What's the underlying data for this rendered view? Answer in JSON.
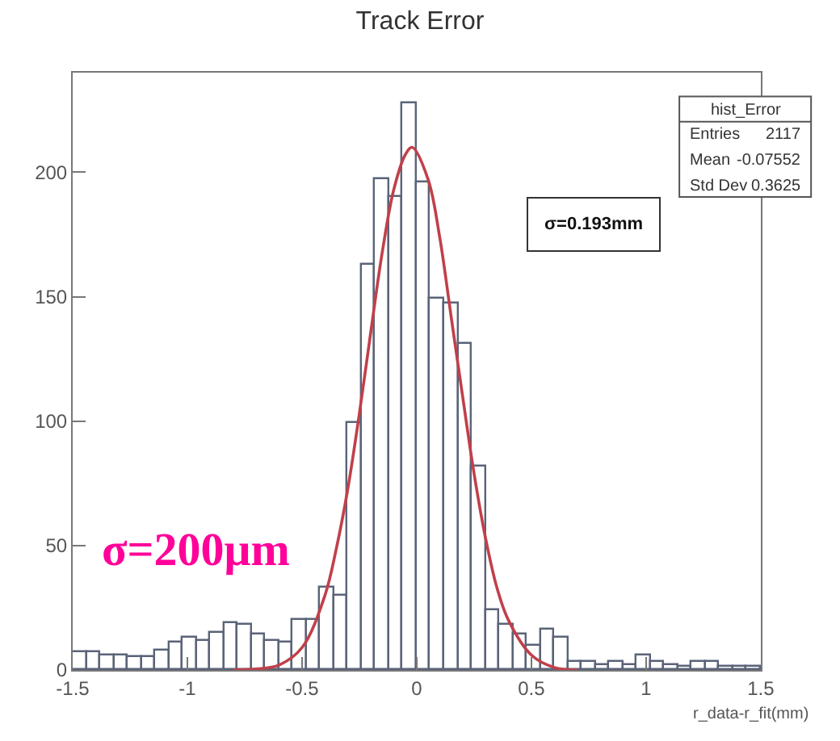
{
  "chart_data": {
    "type": "histogram",
    "title": "Track Error",
    "xlabel": "r_data-r_fit(mm)",
    "bins": [
      -1.5,
      -1.44,
      -1.38,
      -1.32,
      -1.26,
      -1.2,
      -1.14,
      -1.08,
      -1.02,
      -0.96,
      -0.9,
      -0.84,
      -0.78,
      -0.72,
      -0.66,
      -0.6,
      -0.54,
      -0.48,
      -0.42,
      -0.36,
      -0.3,
      -0.24,
      -0.18,
      -0.12,
      -0.06,
      0,
      0.06,
      0.12,
      0.18,
      0.24,
      0.3,
      0.36,
      0.42,
      0.48,
      0.54,
      0.6,
      0.66,
      0.72,
      0.78,
      0.84,
      0.9,
      0.96,
      1.02,
      1.08,
      1.14,
      1.2,
      1.26,
      1.32,
      1.38,
      1.44,
      1.5
    ],
    "values": [
      7,
      7,
      6,
      6,
      5,
      5,
      8,
      11,
      13,
      12,
      15,
      19,
      18,
      14,
      12,
      11,
      20,
      20,
      33,
      30,
      99,
      163,
      197,
      190,
      228,
      196,
      149,
      147,
      131,
      82,
      24,
      18,
      14,
      10,
      16,
      13,
      3,
      3,
      2,
      3,
      2,
      6,
      3,
      2,
      1,
      3,
      3,
      1,
      1,
      1
    ],
    "color": "#5a6378",
    "series": [
      {
        "type": "line",
        "color": "#c0404a",
        "x": [
          -0.8,
          -0.7,
          -0.6,
          -0.5,
          -0.4,
          -0.35,
          -0.3,
          -0.25,
          -0.2,
          -0.15,
          -0.1,
          -0.05,
          -0.02,
          0.05,
          0.1,
          0.15,
          0.2,
          0.25,
          0.3,
          0.35,
          0.4,
          0.5,
          0.6,
          0.7
        ],
        "values": [
          0,
          0.4,
          2,
          9,
          30,
          49,
          73,
          103,
          136,
          168,
          193,
          207,
          210,
          197,
          174,
          142,
          110,
          79,
          53,
          33,
          20,
          6,
          1,
          0
        ]
      }
    ],
    "xlim": [
      -1.5,
      1.5
    ],
    "xticks": [
      -1.5,
      -1,
      -0.5,
      0,
      0.5,
      1,
      1.5
    ],
    "ylim": [
      0,
      240
    ],
    "yticks": [
      0,
      50,
      100,
      150,
      200
    ],
    "annotations": [
      "hist_Error",
      "Entries",
      "2117",
      "Mean",
      "-0.07552",
      "Std Dev",
      "0.3625",
      "σ=0.193mm",
      "σ=200μm"
    ]
  }
}
